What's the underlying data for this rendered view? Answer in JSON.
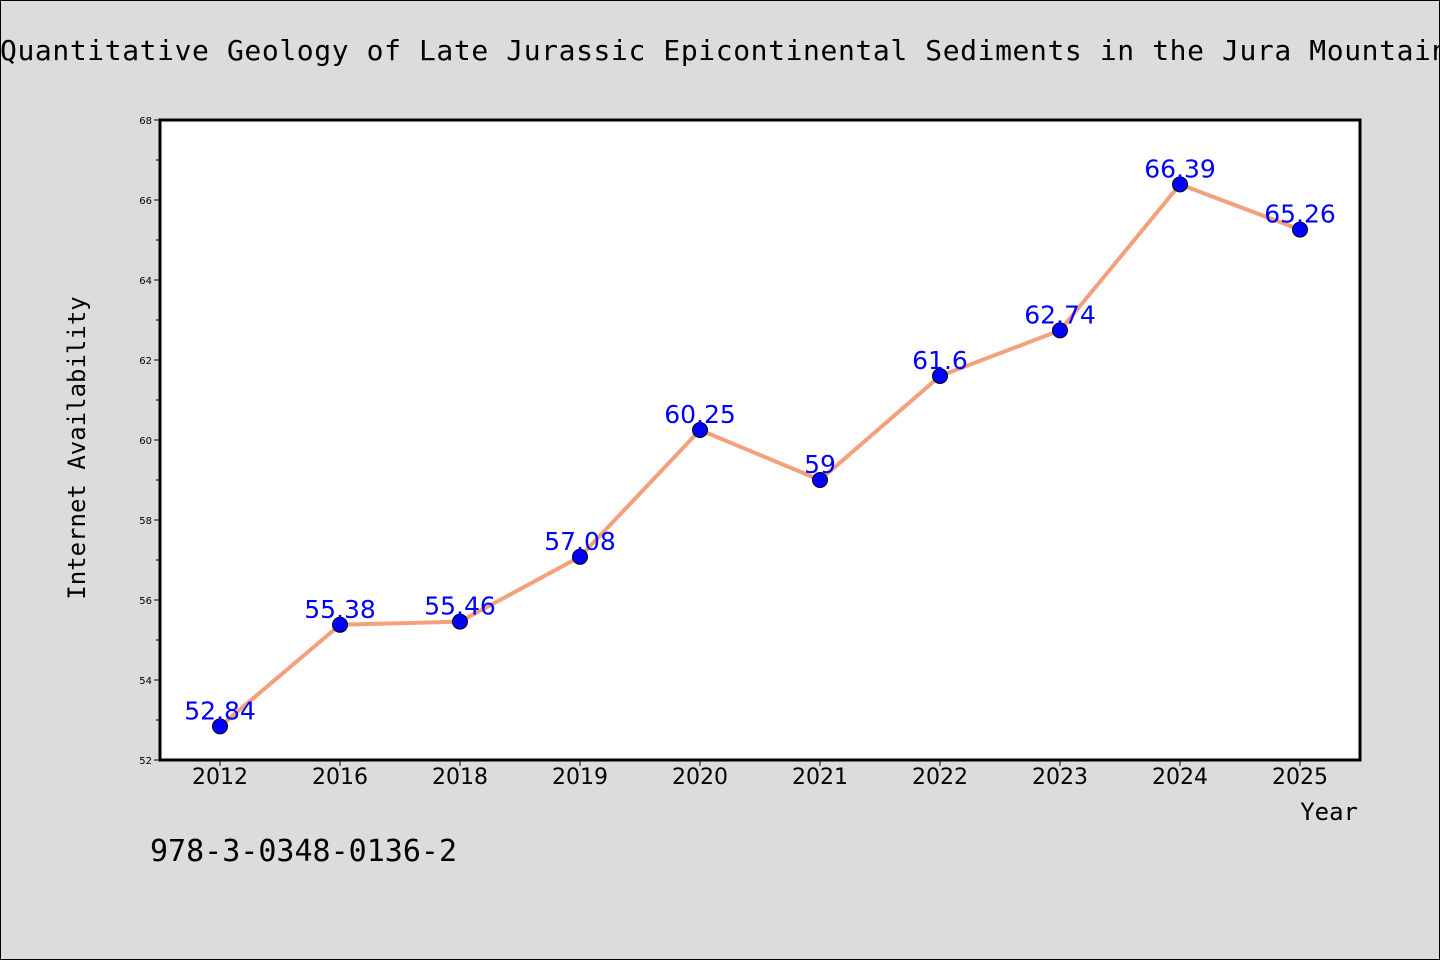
{
  "chart_data": {
    "type": "line",
    "title": "Quantitative Geology of Late Jurassic Epicontinental Sediments in the Jura Mountains",
    "xlabel": "Year",
    "ylabel": "Internet Availability",
    "categories": [
      "2012",
      "2016",
      "2018",
      "2019",
      "2020",
      "2021",
      "2022",
      "2023",
      "2024",
      "2025"
    ],
    "series": [
      {
        "values": [
          52.84,
          55.38,
          55.46,
          57.08,
          60.25,
          59,
          61.6,
          62.74,
          66.39,
          65.26
        ],
        "labels": [
          "52.84",
          "55.38",
          "55.46",
          "57.08",
          "60.25",
          "59",
          "61.6",
          "62.74",
          "66.39",
          "65.26"
        ],
        "line_color": "#f4a07c",
        "marker_color": "#0000ff"
      }
    ],
    "ylim": [
      52,
      68
    ],
    "yticks": [
      "52",
      "54",
      "56",
      "58",
      "60",
      "62",
      "64",
      "66",
      "68"
    ],
    "grid": false,
    "legend": "none"
  },
  "footer": {
    "code": "978-3-0348-0136-2"
  },
  "colors": {
    "background": "#dcdcdc",
    "plot_background": "#ffffff",
    "line": "#f4a07c",
    "marker": "#0000ff",
    "data_label": "#0000ff"
  }
}
